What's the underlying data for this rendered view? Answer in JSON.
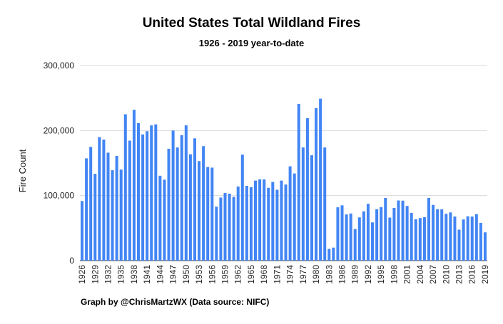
{
  "chart_data": {
    "type": "bar",
    "title": "United States Total Wildland Fires",
    "subtitle": "1926 - 2019 year-to-date",
    "xlabel": "",
    "ylabel": "Fire Count",
    "ylim": [
      0,
      300000
    ],
    "yticks": [
      0,
      100000,
      200000,
      300000
    ],
    "ytick_labels": [
      "0",
      "100,000",
      "200,000",
      "300,000"
    ],
    "grid": true,
    "bar_color": "#4285f4",
    "categories": [
      1926,
      1927,
      1928,
      1929,
      1930,
      1931,
      1932,
      1933,
      1934,
      1935,
      1936,
      1937,
      1938,
      1939,
      1940,
      1941,
      1942,
      1943,
      1944,
      1945,
      1946,
      1947,
      1948,
      1949,
      1950,
      1951,
      1952,
      1953,
      1954,
      1955,
      1956,
      1957,
      1958,
      1959,
      1960,
      1961,
      1962,
      1963,
      1964,
      1965,
      1966,
      1967,
      1968,
      1969,
      1970,
      1971,
      1972,
      1973,
      1974,
      1975,
      1976,
      1977,
      1978,
      1979,
      1980,
      1981,
      1982,
      1983,
      1984,
      1985,
      1986,
      1987,
      1988,
      1989,
      1990,
      1991,
      1992,
      1993,
      1994,
      1995,
      1996,
      1997,
      1998,
      1999,
      2000,
      2001,
      2002,
      2003,
      2004,
      2005,
      2006,
      2007,
      2008,
      2009,
      2010,
      2011,
      2012,
      2013,
      2014,
      2015,
      2016,
      2017,
      2018,
      2019
    ],
    "xtick_labels": [
      "1926",
      "1929",
      "1932",
      "1935",
      "1938",
      "1941",
      "1944",
      "1947",
      "1950",
      "1953",
      "1956",
      "1959",
      "1962",
      "1965",
      "1968",
      "1971",
      "1974",
      "1977",
      "1980",
      "1983",
      "1986",
      "1989",
      "1992",
      "1995",
      "1998",
      "2001",
      "2004",
      "2007",
      "2010",
      "2013",
      "2016",
      "2019"
    ],
    "values": [
      91700,
      157200,
      174900,
      133500,
      190000,
      186100,
      166000,
      139000,
      161000,
      140000,
      225000,
      184500,
      232000,
      211500,
      194000,
      199000,
      208000,
      209500,
      130500,
      124500,
      172000,
      200000,
      174000,
      193000,
      208000,
      163500,
      188000,
      153000,
      176000,
      144000,
      143000,
      83000,
      97000,
      104000,
      103000,
      98000,
      114000,
      163000,
      115000,
      113000,
      123000,
      125000,
      125000,
      112000,
      121000,
      109000,
      123000,
      117000,
      145000,
      134000,
      241000,
      174000,
      219000,
      162000,
      234500,
      249000,
      174000,
      18000,
      20000,
      82000,
      85000,
      71000,
      72500,
      48500,
      66500,
      75750,
      87394,
      58810,
      79107,
      82234,
      96363,
      66196,
      81043,
      92487,
      92250,
      84079,
      73457,
      63629,
      65461,
      66753,
      96385,
      85705,
      78979,
      78792,
      71971,
      74126,
      67774,
      47579,
      63312,
      68151,
      67743,
      71499,
      58083,
      43500
    ]
  },
  "credit": "Graph by @ChrisMartzWX (Data source: NIFC)"
}
